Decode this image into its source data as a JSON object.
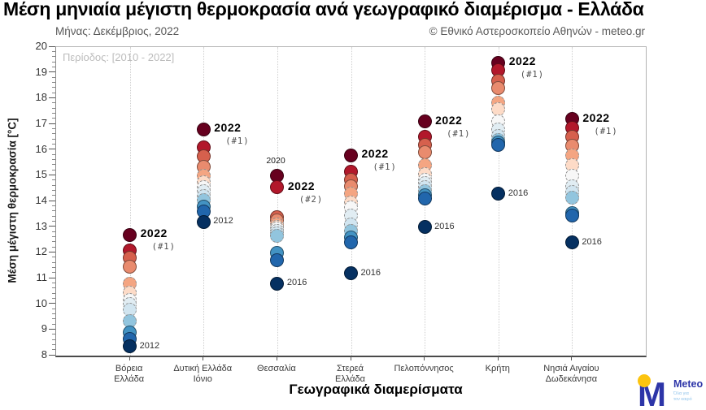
{
  "page": {
    "title": "Μέση μηνιαία μέγιστη θερμοκρασία ανά γεωγραφικό διαμέρισμα - Ελλάδα",
    "subtitle_month": "Μήνας: Δεκέμβριος, 2022",
    "copyright": "© Εθνικό Αστεροσκοπείο Αθηνών - meteo.gr"
  },
  "logo": {
    "name": "Meteo",
    "tagline1": "Όλα για",
    "tagline2": "τον καιρό",
    "blue": "#2d35a8",
    "yellow": "#fcc40f",
    "light_blue": "#93c5ec"
  },
  "chart_data": {
    "type": "scatter",
    "title": "Μέση μηνιαία μέγιστη θερμοκρασία ανά γεωγραφικό διαμέρισμα - Ελλάδα",
    "period_label": "Περίοδος: [2010 - 2022]",
    "xlabel": "Γεωγραφικά διαμερίσματα",
    "ylabel": "Μέση μέγιστη θερμοκρασία [°C]",
    "ylim": [
      8,
      20
    ],
    "ytick_step": 1,
    "yminor_step": 0.2,
    "grid": "vertical dotted line per category",
    "legend": "none",
    "units": "°C",
    "palette_note": "13 colors, rank 1 (warmest) = dark red ... rank 13 (coldest) = dark navy",
    "palette_warm_to_cold": [
      "#67001f",
      "#b2182b",
      "#d6604d",
      "#e98b6e",
      "#f4a582",
      "#fddbc7",
      "#f7f7f7",
      "#e1edf3",
      "#d1e5f0",
      "#92c5de",
      "#4393c3",
      "#2166ac",
      "#053061"
    ],
    "categories": [
      {
        "label_lines": [
          "Βόρεια",
          "Ελλάδα"
        ],
        "points": [
          {
            "t": 12.7,
            "main_label": "2022",
            "rank_label": "(#1)"
          },
          {
            "t": 12.1
          },
          {
            "t": 11.8
          },
          {
            "t": 11.45
          },
          {
            "t": 10.8
          },
          {
            "t": 10.45
          },
          {
            "t": 10.15
          },
          {
            "t": 10.0
          },
          {
            "t": 9.8
          },
          {
            "t": 9.35
          },
          {
            "t": 8.9
          },
          {
            "t": 8.65
          },
          {
            "t": 8.35,
            "year_label": "2012"
          }
        ]
      },
      {
        "label_lines": [
          "Δυτική Ελλάδα",
          "Ιόνιο"
        ],
        "points": [
          {
            "t": 16.8,
            "main_label": "2022",
            "rank_label": "(#1)"
          },
          {
            "t": 16.1
          },
          {
            "t": 15.75
          },
          {
            "t": 15.35
          },
          {
            "t": 15.0
          },
          {
            "t": 14.75
          },
          {
            "t": 14.55
          },
          {
            "t": 14.4
          },
          {
            "t": 14.2
          },
          {
            "t": 14.05
          },
          {
            "t": 13.8
          },
          {
            "t": 13.6
          },
          {
            "t": 13.2,
            "year_label": "2012"
          }
        ]
      },
      {
        "label_lines": [
          "Θεσσαλία"
        ],
        "points": [
          {
            "t": 15.0,
            "top_label": "2020"
          },
          {
            "t": 14.55,
            "main_label": "2022",
            "rank_label": "(#2)"
          },
          {
            "t": 13.4
          },
          {
            "t": 13.25
          },
          {
            "t": 13.1
          },
          {
            "t": 13.0
          },
          {
            "t": 12.95
          },
          {
            "t": 12.85
          },
          {
            "t": 12.75
          },
          {
            "t": 12.65
          },
          {
            "t": 12.0
          },
          {
            "t": 11.7
          },
          {
            "t": 10.8,
            "year_label": "2016"
          }
        ]
      },
      {
        "label_lines": [
          "Στερεά",
          "Ελλάδα"
        ],
        "points": [
          {
            "t": 15.8,
            "main_label": "2022",
            "rank_label": "(#1)"
          },
          {
            "t": 15.15
          },
          {
            "t": 14.85
          },
          {
            "t": 14.6
          },
          {
            "t": 14.3
          },
          {
            "t": 13.95
          },
          {
            "t": 13.75
          },
          {
            "t": 13.45
          },
          {
            "t": 13.1
          },
          {
            "t": 12.85
          },
          {
            "t": 12.6
          },
          {
            "t": 12.4
          },
          {
            "t": 11.2,
            "year_label": "2016"
          }
        ]
      },
      {
        "label_lines": [
          "Πελοπόννησος"
        ],
        "points": [
          {
            "t": 17.1,
            "main_label": "2022",
            "rank_label": "(#1)"
          },
          {
            "t": 16.5
          },
          {
            "t": 16.2
          },
          {
            "t": 15.9
          },
          {
            "t": 15.4
          },
          {
            "t": 15.05
          },
          {
            "t": 14.85
          },
          {
            "t": 14.7
          },
          {
            "t": 14.55
          },
          {
            "t": 14.4
          },
          {
            "t": 14.25
          },
          {
            "t": 14.1
          },
          {
            "t": 13.0,
            "year_label": "2016"
          }
        ]
      },
      {
        "label_lines": [
          "Κρήτη"
        ],
        "points": [
          {
            "t": 19.4,
            "main_label": "2022",
            "rank_label": "(#1)"
          },
          {
            "t": 19.1
          },
          {
            "t": 18.7
          },
          {
            "t": 18.4
          },
          {
            "t": 17.85
          },
          {
            "t": 17.6
          },
          {
            "t": 17.1
          },
          {
            "t": 16.8
          },
          {
            "t": 16.55
          },
          {
            "t": 16.4
          },
          {
            "t": 16.3
          },
          {
            "t": 16.2
          },
          {
            "t": 14.3,
            "year_label": "2016"
          }
        ]
      },
      {
        "label_lines": [
          "Νησιά Αιγαίου",
          "Δωδεκάνησα"
        ],
        "points": [
          {
            "t": 17.2,
            "main_label": "2022",
            "rank_label": "(#1)"
          },
          {
            "t": 16.85
          },
          {
            "t": 16.5
          },
          {
            "t": 16.15
          },
          {
            "t": 15.8
          },
          {
            "t": 15.4
          },
          {
            "t": 15.0
          },
          {
            "t": 14.6
          },
          {
            "t": 14.35
          },
          {
            "t": 14.15
          },
          {
            "t": 13.55
          },
          {
            "t": 13.45
          },
          {
            "t": 12.4,
            "year_label": "2016"
          }
        ]
      }
    ]
  }
}
